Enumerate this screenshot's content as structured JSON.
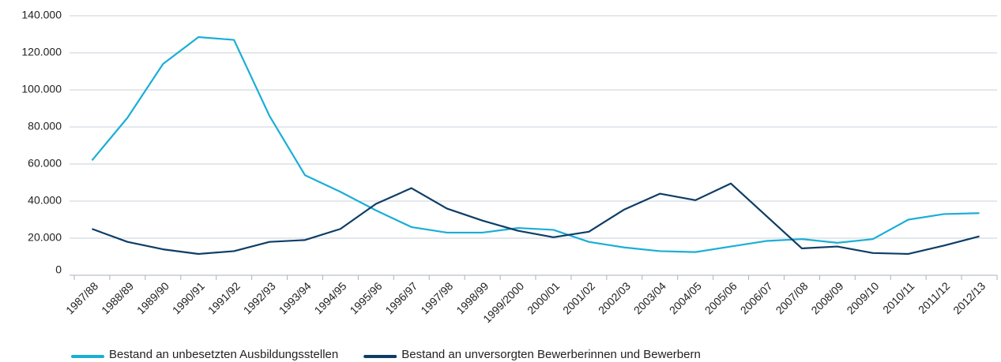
{
  "chart_data": {
    "type": "line",
    "categories": [
      "1987/88",
      "1988/89",
      "1989/90",
      "1990/91",
      "1991/92",
      "1992/93",
      "1993/94",
      "1994/95",
      "1995/96",
      "1996/97",
      "1997/98",
      "1998/99",
      "1999/2000",
      "2000/01",
      "2001/02",
      "2002/03",
      "2003/04",
      "2004/05",
      "2005/06",
      "2006/07",
      "2007/08",
      "2008/09",
      "2009/10",
      "2010/11",
      "2011/12",
      "2012/13"
    ],
    "series": [
      {
        "name": "Bestand an unbesetzten Ausbildungsstellen",
        "color": "#1aaed6",
        "values": [
          62000,
          85000,
          114000,
          128500,
          127000,
          86000,
          54000,
          45000,
          35000,
          26000,
          23000,
          23000,
          25500,
          24500,
          18000,
          15000,
          13000,
          12500,
          15500,
          18500,
          19500,
          17500,
          19500,
          30000,
          33000,
          33500
        ]
      },
      {
        "name": "Bestand an unversorgten Bewerberinnen und Bewerbern",
        "color": "#0d3d66",
        "values": [
          25000,
          18000,
          14000,
          11500,
          13000,
          18000,
          19000,
          25000,
          38500,
          47000,
          36000,
          29500,
          24000,
          20500,
          23500,
          35500,
          44000,
          40500,
          49500,
          32000,
          14500,
          15500,
          12000,
          11500,
          16000,
          21000
        ]
      }
    ],
    "ylim": [
      0,
      140000
    ],
    "yticks": [
      0,
      {
        "value": 20000,
        "label": "20.000"
      },
      {
        "value": 40000,
        "label": "40.000"
      },
      {
        "value": 60000,
        "label": "60.000"
      },
      {
        "value": 80000,
        "label": "80.000"
      },
      {
        "value": 100000,
        "label": "100.000"
      },
      {
        "value": 120000,
        "label": "120.000"
      },
      {
        "value": 140000,
        "label": "140.000"
      }
    ],
    "grid": true,
    "legend": "bottom"
  }
}
